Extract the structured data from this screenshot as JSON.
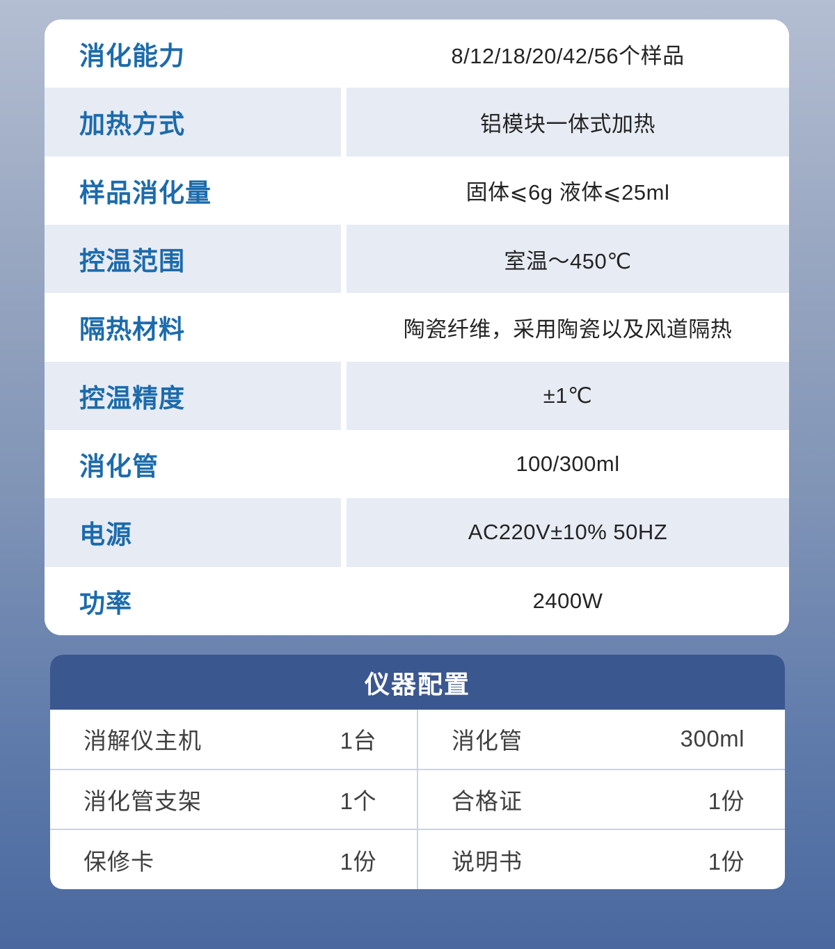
{
  "spec_table": {
    "rows": [
      {
        "label": "消化能力",
        "value": "8/12/18/20/42/56个样品"
      },
      {
        "label": "加热方式",
        "value": "铝模块一体式加热"
      },
      {
        "label": "样品消化量",
        "value": "固体⩽6g 液体⩽25ml"
      },
      {
        "label": "控温范围",
        "value": "室温～450℃"
      },
      {
        "label": "隔热材料",
        "value": "陶瓷纤维，采用陶瓷以及风道隔热"
      },
      {
        "label": "控温精度",
        "value": "±1℃"
      },
      {
        "label": "消化管",
        "value": "100/300ml"
      },
      {
        "label": "电源",
        "value": "AC220V±10% 50HZ"
      },
      {
        "label": "功率",
        "value": "2400W"
      }
    ],
    "colors": {
      "label_blue": "#1c6bab",
      "shaded_row": "#e7ebf4"
    }
  },
  "config_table": {
    "title": "仪器配置",
    "header_color": "#3b578f",
    "rows": [
      {
        "left": {
          "item": "消解仪主机",
          "qty": "1台"
        },
        "right": {
          "item": "消化管",
          "qty": "300ml"
        }
      },
      {
        "left": {
          "item": "消化管支架",
          "qty": "1个"
        },
        "right": {
          "item": "合格证",
          "qty": "1份"
        }
      },
      {
        "left": {
          "item": "保修卡",
          "qty": "1份"
        },
        "right": {
          "item": "说明书",
          "qty": "1份"
        }
      }
    ]
  }
}
